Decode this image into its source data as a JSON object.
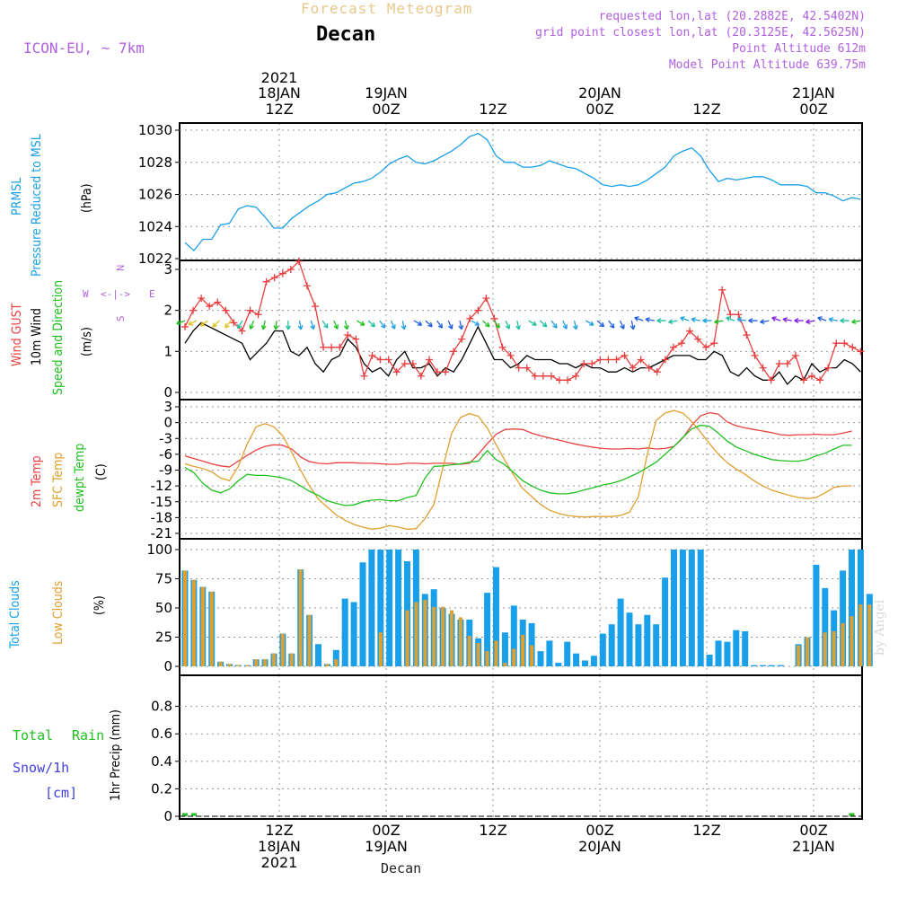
{
  "header": {
    "title": "Forecast Meteogram",
    "location": "Decan",
    "model": "ICON-EU, ~ 7km",
    "requested": "requested lon,lat (20.2882E, 42.5402N)",
    "gridpoint": "grid point closest lon,lat (20.3125E, 42.5625N)",
    "point_alt": "Point Altitude 612m",
    "model_alt": "Model Point Altitude 639.75m"
  },
  "footer": {
    "location": "Decan",
    "watermark": "by Angel"
  },
  "top_axis": [
    {
      "l1": "2021",
      "l2": "18JAN",
      "l3": "12Z"
    },
    {
      "l2": "19JAN",
      "l3": "00Z"
    },
    {
      "l3": "12Z"
    },
    {
      "l2": "20JAN",
      "l3": "00Z"
    },
    {
      "l3": "12Z"
    },
    {
      "l2": "21JAN",
      "l3": "00Z"
    }
  ],
  "bottom_axis": [
    {
      "l1": "12Z",
      "l2": "18JAN",
      "l3": "2021"
    },
    {
      "l1": "00Z",
      "l2": "19JAN"
    },
    {
      "l1": "12Z"
    },
    {
      "l1": "00Z",
      "l2": "20JAN"
    },
    {
      "l1": "12Z"
    },
    {
      "l1": "00Z",
      "l2": "21JAN"
    }
  ],
  "side_labels": {
    "pressure": [
      "PRMSL",
      "Pressure Reduced to MSL",
      "(hPa)"
    ],
    "wind": [
      "Wind GUST",
      "10m Wind",
      "Speed and Direction",
      "(m/s)"
    ],
    "temp": [
      "2m Temp",
      "SFC Temp",
      "dewpt Temp",
      "(C)"
    ],
    "clouds": [
      "Total Clouds",
      "Low Clouds",
      "(%)"
    ],
    "precip": [
      "Total",
      "Rain",
      "Snow/1h",
      "[cm]",
      "1hr Precip (mm)"
    ],
    "compass": [
      "W",
      "<-|->",
      "E",
      "N",
      "S"
    ]
  },
  "colors": {
    "pressure": "#1aa0e8",
    "gust": "#e84040",
    "wind": "#000000",
    "temp2m": "#e84040",
    "sfc": "#e0a030",
    "dewpt": "#20c020",
    "total_cloud": "#1aa0e8",
    "low_cloud": "#e0a030",
    "rain": "#20c020",
    "snow": "#4040e0",
    "label_purple": "#b060e0",
    "title_tan": "#e8c88a"
  },
  "chart_data": [
    {
      "type": "line",
      "name": "pressure",
      "ylim": [
        1022,
        1030
      ],
      "yticks": [
        1022,
        1024,
        1026,
        1028,
        1030
      ],
      "x_hours": [
        0,
        1,
        2,
        3,
        4,
        5,
        6,
        7,
        8,
        9,
        10,
        11,
        12,
        13,
        14,
        15,
        16,
        17,
        18,
        19,
        20,
        21,
        22,
        23,
        24,
        25,
        26,
        27,
        28,
        29,
        30,
        31,
        32,
        33,
        34,
        35,
        36,
        37,
        38,
        39,
        40,
        41,
        42,
        43,
        44,
        45,
        46,
        47,
        48,
        49,
        50,
        51,
        52,
        53,
        54,
        55,
        56,
        57,
        58,
        59,
        60,
        61,
        62,
        63,
        64,
        65,
        66,
        67,
        68,
        69,
        70,
        71,
        72,
        73,
        74,
        75,
        76
      ],
      "values": [
        1023.0,
        1022.5,
        1023.2,
        1023.2,
        1024.1,
        1024.2,
        1025.1,
        1025.3,
        1025.2,
        1024.6,
        1023.9,
        1023.9,
        1024.5,
        1024.9,
        1025.3,
        1025.6,
        1026.0,
        1026.1,
        1026.4,
        1026.7,
        1026.8,
        1027.0,
        1027.4,
        1027.9,
        1028.2,
        1028.4,
        1028.0,
        1027.9,
        1028.1,
        1028.4,
        1028.7,
        1029.1,
        1029.6,
        1029.8,
        1029.4,
        1028.4,
        1028.0,
        1028.0,
        1027.7,
        1027.7,
        1027.8,
        1028.1,
        1027.9,
        1027.7,
        1027.6,
        1027.3,
        1027.0,
        1026.6,
        1026.5,
        1026.6,
        1026.5,
        1026.6,
        1026.9,
        1027.3,
        1027.7,
        1028.4,
        1028.7,
        1028.9,
        1028.4,
        1027.5,
        1026.8,
        1027.0,
        1026.9,
        1027.0,
        1027.1,
        1027.1,
        1026.9,
        1026.6,
        1026.6,
        1026.6,
        1026.5,
        1026.1,
        1026.1,
        1025.9,
        1025.6,
        1025.8,
        1025.7
      ]
    },
    {
      "type": "line",
      "name": "wind",
      "ylim": [
        0,
        3
      ],
      "yticks": [
        0,
        1,
        2,
        3
      ],
      "gust": [
        1.6,
        2.0,
        2.3,
        2.1,
        2.2,
        2.0,
        1.7,
        1.5,
        2.0,
        1.9,
        2.7,
        2.8,
        2.9,
        3.0,
        3.2,
        2.6,
        2.1,
        1.1,
        1.1,
        1.1,
        1.4,
        1.3,
        0.4,
        0.9,
        0.8,
        0.8,
        0.5,
        0.7,
        0.7,
        0.4,
        0.8,
        0.5,
        0.5,
        1.0,
        1.3,
        1.8,
        2.0,
        2.3,
        1.8,
        1.1,
        0.9,
        0.6,
        0.6,
        0.4,
        0.4,
        0.4,
        0.3,
        0.3,
        0.4,
        0.7,
        0.7,
        0.8,
        0.8,
        0.8,
        0.9,
        0.6,
        0.8,
        0.6,
        0.5,
        0.8,
        1.1,
        1.2,
        1.5,
        1.3,
        1.1,
        1.2,
        2.5,
        1.9,
        1.9,
        1.4,
        0.9,
        0.6,
        0.3,
        0.7,
        0.7,
        0.9,
        0.3,
        0.4,
        0.3,
        0.6,
        1.2,
        1.2,
        1.1,
        1.0
      ],
      "wind": [
        1.2,
        1.5,
        1.7,
        1.6,
        1.5,
        1.4,
        1.3,
        1.2,
        0.8,
        1.0,
        1.2,
        1.5,
        1.5,
        1.0,
        0.9,
        1.1,
        0.7,
        0.5,
        0.8,
        0.9,
        1.3,
        1.1,
        0.7,
        0.5,
        0.6,
        0.4,
        0.8,
        1.0,
        0.6,
        0.6,
        0.7,
        0.4,
        0.6,
        0.5,
        0.8,
        1.2,
        1.6,
        1.2,
        0.8,
        0.8,
        0.6,
        0.7,
        0.9,
        0.8,
        0.8,
        0.8,
        0.7,
        0.7,
        0.6,
        0.7,
        0.6,
        0.6,
        0.5,
        0.5,
        0.6,
        0.5,
        0.6,
        0.6,
        0.7,
        0.8,
        0.9,
        0.9,
        0.9,
        0.8,
        0.8,
        1.0,
        0.9,
        0.5,
        0.4,
        0.6,
        0.4,
        0.3,
        0.3,
        0.5,
        0.2,
        0.4,
        0.3,
        0.7,
        0.5,
        0.6,
        0.6,
        0.8,
        0.7,
        0.5
      ],
      "arrow_colors": [
        "#20c020",
        "#e0c020",
        "#e0c020",
        "#e0c020",
        "#e0c020",
        "#20c0a0",
        "#20c020",
        "#20c020",
        "#20c020",
        "#20c0a0",
        "#20a0e0",
        "#20a0e0",
        "#20c0a0",
        "#20c020",
        "#20c020",
        "#20c020",
        "#20c0a0",
        "#20a0e0",
        "#20a0e0",
        "#20a0e0",
        "#2060e0",
        "#2060e0",
        "#2060e0",
        "#2060e0",
        "#2060e0",
        "#20a0e0",
        "#20c020",
        "#20c020",
        "#20c0a0",
        "#20c0a0",
        "#20c0a0",
        "#20c0a0",
        "#20a0e0",
        "#20a0e0",
        "#20a0e0",
        "#20a0e0",
        "#2060e0",
        "#2060e0",
        "#2060e0",
        "#2060e0",
        "#2060e0",
        "#2060e0",
        "#20c0a0",
        "#20c0a0",
        "#20a0e0",
        "#20a0e0",
        "#20a0e0",
        "#20c020",
        "#20c0a0",
        "#20a0e0",
        "#2060e0",
        "#2060e0",
        "#8020e0",
        "#8020e0",
        "#8020e0",
        "#8020e0",
        "#2060e0",
        "#20a0e0",
        "#20c0a0",
        "#20c020"
      ]
    },
    {
      "type": "line",
      "name": "temperature",
      "ylim": [
        -21,
        3
      ],
      "yticks": [
        3,
        0,
        -3,
        -6,
        -9,
        -12,
        -15,
        -18,
        -21
      ],
      "t2m": [
        -6.3,
        -6.8,
        -7.3,
        -7.8,
        -8.2,
        -8.4,
        -7.3,
        -6.2,
        -5.2,
        -4.5,
        -4.2,
        -4.3,
        -5.0,
        -6.5,
        -7.4,
        -7.7,
        -7.8,
        -7.6,
        -7.6,
        -7.6,
        -7.7,
        -7.7,
        -7.8,
        -7.9,
        -7.9,
        -7.7,
        -7.7,
        -7.8,
        -7.7,
        -7.7,
        -7.7,
        -7.9,
        -7.7,
        -6.0,
        -4.0,
        -2.2,
        -1.3,
        -1.2,
        -1.3,
        -2.0,
        -2.5,
        -2.9,
        -3.3,
        -3.7,
        -4.1,
        -4.4,
        -4.7,
        -4.9,
        -5.0,
        -5.0,
        -4.9,
        -5.0,
        -4.8,
        -5.0,
        -4.9,
        -4.5,
        -2.9,
        -0.5,
        1.3,
        1.9,
        1.6,
        0.1,
        -0.6,
        -1.0,
        -1.3,
        -1.6,
        -1.9,
        -2.3,
        -2.4,
        -2.3,
        -2.3,
        -2.2,
        -2.3,
        -2.3,
        -2.0,
        -1.6
      ],
      "sfc": [
        -7.8,
        -8.3,
        -8.7,
        -9.3,
        -10.5,
        -11.0,
        -8.3,
        -4.0,
        -0.8,
        -0.2,
        -0.8,
        -2.5,
        -5.6,
        -9.0,
        -12.0,
        -14.5,
        -16.0,
        -17.5,
        -18.5,
        -19.3,
        -19.8,
        -20.2,
        -20.0,
        -19.5,
        -19.8,
        -20.2,
        -20.1,
        -18.2,
        -15.5,
        -8.6,
        -2.0,
        1.0,
        1.7,
        1.2,
        -1.0,
        -4.2,
        -7.2,
        -10.0,
        -12.5,
        -14.0,
        -15.5,
        -16.6,
        -17.2,
        -17.6,
        -17.8,
        -17.9,
        -17.8,
        -17.8,
        -17.8,
        -17.6,
        -17.0,
        -14.0,
        -6.0,
        0.4,
        1.8,
        2.3,
        1.8,
        0.2,
        -1.8,
        -4.0,
        -6.0,
        -7.6,
        -8.8,
        -9.8,
        -11.0,
        -12.0,
        -12.8,
        -13.3,
        -13.8,
        -14.2,
        -14.4,
        -14.2,
        -13.3,
        -12.3,
        -12.0,
        -12.0
      ],
      "dewpt": [
        -8.5,
        -9.5,
        -11.5,
        -12.8,
        -13.3,
        -12.6,
        -11.0,
        -9.8,
        -10.0,
        -10.0,
        -10.2,
        -10.5,
        -11.0,
        -12.0,
        -13.0,
        -13.8,
        -14.8,
        -15.3,
        -15.7,
        -15.6,
        -15.0,
        -14.7,
        -14.6,
        -14.8,
        -14.8,
        -14.2,
        -13.8,
        -10.5,
        -8.3,
        -8.2,
        -8.0,
        -7.8,
        -7.5,
        -7.3,
        -5.3,
        -7.0,
        -8.0,
        -9.5,
        -11.0,
        -12.0,
        -12.8,
        -13.3,
        -13.5,
        -13.5,
        -13.2,
        -12.7,
        -12.3,
        -11.8,
        -11.5,
        -11.0,
        -10.3,
        -9.5,
        -8.5,
        -7.5,
        -6.0,
        -4.5,
        -2.8,
        -1.2,
        -0.5,
        -0.7,
        -2.0,
        -3.5,
        -4.6,
        -5.3,
        -6.0,
        -6.5,
        -7.0,
        -7.2,
        -7.3,
        -7.3,
        -7.0,
        -6.3,
        -5.8,
        -5.0,
        -4.3,
        -4.3
      ]
    },
    {
      "type": "bar",
      "name": "clouds",
      "ylim": [
        0,
        100
      ],
      "yticks": [
        0,
        25,
        50,
        75,
        100
      ],
      "total": [
        82,
        74,
        68,
        64,
        4,
        2,
        1,
        1,
        6,
        6,
        11,
        28,
        11,
        83,
        44,
        19,
        2,
        14,
        58,
        55,
        89,
        100,
        100,
        100,
        100,
        90,
        100,
        62,
        66,
        50,
        45,
        40,
        40,
        24,
        63,
        85,
        29,
        52,
        40,
        37,
        13,
        22,
        3,
        21,
        11,
        5,
        9,
        28,
        36,
        58,
        46,
        36,
        44,
        36,
        76,
        100,
        100,
        100,
        100,
        10,
        22,
        21,
        31,
        30,
        1,
        1,
        1,
        1,
        0,
        19,
        25,
        87,
        67,
        48,
        82,
        100,
        100,
        62
      ],
      "low": [
        82,
        74,
        68,
        64,
        4,
        2,
        1,
        1,
        6,
        6,
        11,
        28,
        11,
        83,
        44,
        0,
        2,
        6,
        0,
        0,
        0,
        0,
        29,
        0,
        0,
        48,
        55,
        57,
        51,
        51,
        48,
        42,
        26,
        20,
        13,
        22,
        3,
        15,
        27,
        18,
        0,
        0,
        0,
        0,
        0,
        0,
        0,
        0,
        0,
        0,
        0,
        0,
        0,
        0,
        0,
        0,
        0,
        0,
        0,
        0,
        0,
        0,
        0,
        0,
        0,
        0,
        0,
        0,
        0,
        18,
        25,
        0,
        29,
        30,
        37,
        43,
        53,
        53
      ]
    },
    {
      "type": "bar",
      "name": "precip",
      "ylim": [
        0,
        1
      ],
      "yticks": [
        0,
        0.2,
        0.4,
        0.6,
        0.8
      ],
      "rain": [
        0.01,
        0.01,
        0,
        0,
        0,
        0,
        0,
        0,
        0,
        0,
        0,
        0,
        0,
        0,
        0,
        0,
        0,
        0,
        0,
        0,
        0,
        0,
        0,
        0,
        0,
        0,
        0,
        0,
        0,
        0,
        0,
        0,
        0,
        0,
        0,
        0,
        0,
        0,
        0,
        0,
        0,
        0,
        0,
        0,
        0,
        0,
        0,
        0,
        0,
        0,
        0,
        0,
        0,
        0,
        0,
        0,
        0,
        0,
        0,
        0,
        0,
        0,
        0,
        0,
        0,
        0,
        0,
        0,
        0,
        0,
        0,
        0,
        0,
        0,
        0,
        0.01
      ]
    }
  ]
}
